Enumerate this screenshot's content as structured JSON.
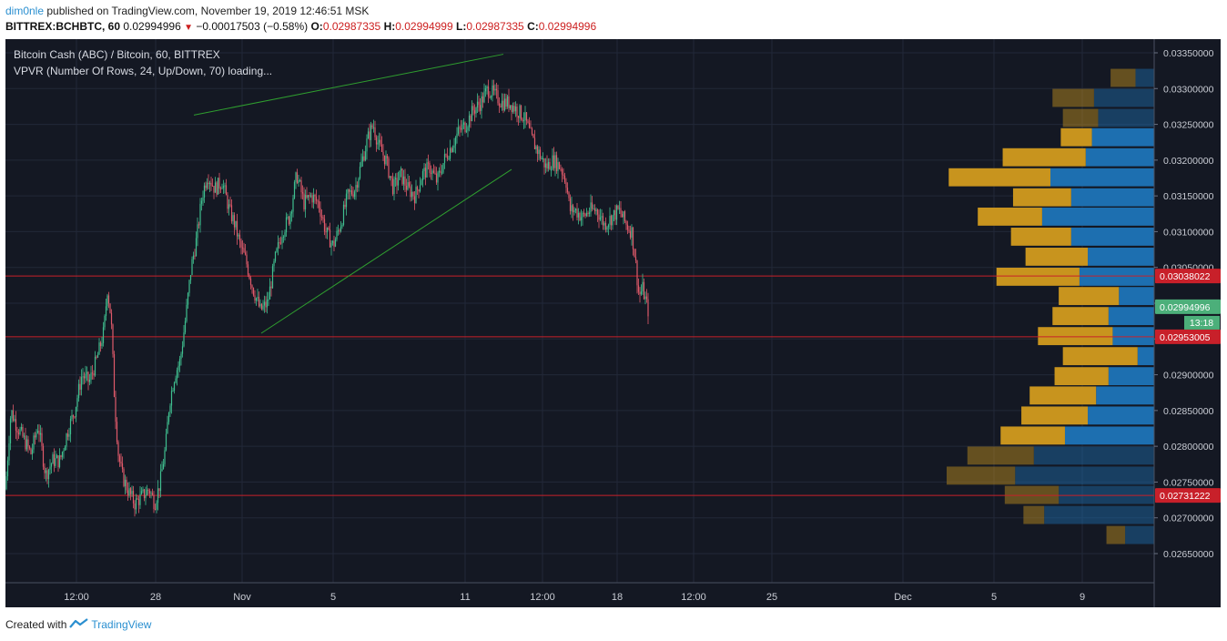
{
  "header": {
    "user": "dim0nle",
    "published": "published on TradingView.com, November 19, 2019 12:46:51 MSK",
    "symbol": "BITTREX:BCHBTC, 60",
    "last": "0.02994996",
    "change": "−0.00017503 (−0.58%)",
    "o_label": "O:",
    "o": "0.02987335",
    "h_label": "H:",
    "h": "0.02994999",
    "l_label": "L:",
    "l": "0.02987335",
    "c_label": "C:",
    "c": "0.02994996"
  },
  "legend": {
    "title": "Bitcoin Cash (ABC) / Bitcoin, 60, BITTREX",
    "indicator": "VPVR (Number Of Rows, 24, Up/Down, 70) loading..."
  },
  "footer": {
    "created": "Created with",
    "brand": "TradingView"
  },
  "colors": {
    "background": "#141823",
    "grid": "#222838",
    "up": "#3fbf8f",
    "down": "#e05a6a",
    "trendline": "#2f9e2f",
    "hline": "#c8202a",
    "vp_up": "#c8941e",
    "vp_down": "#1d6fb0",
    "price_tag_green": "#4caf7a",
    "price_tag_red": "#c8202a"
  },
  "chart_data": {
    "type": "candlestick",
    "symbol": "BCHBTC",
    "timeframe": "60",
    "x_ticks": [
      "12:00",
      "28",
      "Nov",
      "5",
      "11",
      "12:00",
      "18",
      "12:00",
      "25",
      "Dec",
      "5",
      "9"
    ],
    "y_ticks": [
      "0.03350000",
      "0.03300000",
      "0.03250000",
      "0.03200000",
      "0.03150000",
      "0.03100000",
      "0.03050000",
      "0.03000000",
      "0.02950000",
      "0.02900000",
      "0.02850000",
      "0.02800000",
      "0.02750000",
      "0.02700000",
      "0.02650000"
    ],
    "ylim": [
      0.02625,
      0.0338
    ],
    "close_path": [
      [
        0,
        0.0274
      ],
      [
        6,
        0.0285
      ],
      [
        12,
        0.0283
      ],
      [
        20,
        0.0281
      ],
      [
        28,
        0.0279
      ],
      [
        36,
        0.0283
      ],
      [
        44,
        0.0276
      ],
      [
        52,
        0.0278
      ],
      [
        60,
        0.0278
      ],
      [
        68,
        0.0282
      ],
      [
        76,
        0.0285
      ],
      [
        84,
        0.029
      ],
      [
        92,
        0.0289
      ],
      [
        100,
        0.0292
      ],
      [
        108,
        0.0296
      ],
      [
        112,
        0.0302
      ],
      [
        116,
        0.0298
      ],
      [
        120,
        0.0286
      ],
      [
        124,
        0.0279
      ],
      [
        128,
        0.0276
      ],
      [
        134,
        0.0274
      ],
      [
        142,
        0.0272
      ],
      [
        150,
        0.0273
      ],
      [
        158,
        0.0274
      ],
      [
        164,
        0.0272
      ],
      [
        170,
        0.0275
      ],
      [
        176,
        0.028
      ],
      [
        180,
        0.0286
      ],
      [
        186,
        0.029
      ],
      [
        192,
        0.0292
      ],
      [
        198,
        0.0298
      ],
      [
        204,
        0.0305
      ],
      [
        210,
        0.0309
      ],
      [
        216,
        0.0315
      ],
      [
        222,
        0.0318
      ],
      [
        230,
        0.0316
      ],
      [
        238,
        0.0317
      ],
      [
        246,
        0.0313
      ],
      [
        252,
        0.0311
      ],
      [
        258,
        0.0308
      ],
      [
        264,
        0.0306
      ],
      [
        272,
        0.0302
      ],
      [
        280,
        0.0299
      ],
      [
        288,
        0.03
      ],
      [
        296,
        0.0306
      ],
      [
        304,
        0.031
      ],
      [
        312,
        0.0312
      ],
      [
        320,
        0.0318
      ],
      [
        328,
        0.0314
      ],
      [
        336,
        0.0315
      ],
      [
        344,
        0.0314
      ],
      [
        352,
        0.031
      ],
      [
        360,
        0.0308
      ],
      [
        368,
        0.0311
      ],
      [
        376,
        0.0315
      ],
      [
        384,
        0.0316
      ],
      [
        392,
        0.032
      ],
      [
        398,
        0.0323
      ],
      [
        404,
        0.0325
      ],
      [
        410,
        0.0322
      ],
      [
        418,
        0.032
      ],
      [
        426,
        0.0316
      ],
      [
        434,
        0.0318
      ],
      [
        442,
        0.0316
      ],
      [
        450,
        0.0315
      ],
      [
        458,
        0.0318
      ],
      [
        466,
        0.0319
      ],
      [
        474,
        0.0317
      ],
      [
        482,
        0.032
      ],
      [
        490,
        0.0322
      ],
      [
        498,
        0.0324
      ],
      [
        506,
        0.0325
      ],
      [
        514,
        0.0327
      ],
      [
        522,
        0.0328
      ],
      [
        530,
        0.033
      ],
      [
        538,
        0.0329
      ],
      [
        546,
        0.0328
      ],
      [
        554,
        0.0328
      ],
      [
        562,
        0.0327
      ],
      [
        570,
        0.0326
      ],
      [
        578,
        0.0323
      ],
      [
        586,
        0.0321
      ],
      [
        594,
        0.0319
      ],
      [
        602,
        0.032
      ],
      [
        610,
        0.0319
      ],
      [
        616,
        0.0317
      ],
      [
        620,
        0.0313
      ],
      [
        626,
        0.0313
      ],
      [
        634,
        0.0312
      ],
      [
        642,
        0.0313
      ],
      [
        650,
        0.0313
      ],
      [
        658,
        0.0311
      ],
      [
        666,
        0.0312
      ],
      [
        674,
        0.0313
      ],
      [
        682,
        0.0311
      ],
      [
        688,
        0.031
      ],
      [
        692,
        0.0306
      ],
      [
        696,
        0.0301
      ],
      [
        700,
        0.0302
      ],
      [
        706,
        0.0299
      ]
    ],
    "trendlines": [
      {
        "x1": 207,
        "y1": 0.03263,
        "x2": 547,
        "y2": 0.03348
      },
      {
        "x1": 281,
        "y1": 0.02958,
        "x2": 556,
        "y2": 0.03187
      }
    ],
    "horizontal_levels": [
      0.03038022,
      0.02953005,
      0.02731222
    ],
    "price_labels": [
      {
        "value": 0.03038022,
        "text": "0.03038022",
        "kind": "level"
      },
      {
        "value": 0.02994996,
        "text": "0.02994996",
        "kind": "last"
      },
      {
        "value": 0.02953005,
        "text": "0.02953005",
        "kind": "level"
      },
      {
        "value": 0.02731222,
        "text": "0.02731222",
        "kind": "level"
      }
    ],
    "countdown": "13:18",
    "volume_profile": {
      "rows": 24,
      "mode": "Up/Down",
      "value_area_percent": 70,
      "bins": [
        {
          "price": 0.03315,
          "up": 0.12,
          "down": 0.09,
          "in_value_area": false
        },
        {
          "price": 0.03287,
          "up": 0.2,
          "down": 0.29,
          "in_value_area": false
        },
        {
          "price": 0.03259,
          "up": 0.17,
          "down": 0.27,
          "in_value_area": false
        },
        {
          "price": 0.03232,
          "up": 0.15,
          "down": 0.3,
          "in_value_area": true
        },
        {
          "price": 0.03204,
          "up": 0.4,
          "down": 0.33,
          "in_value_area": true
        },
        {
          "price": 0.03176,
          "up": 0.49,
          "down": 0.5,
          "in_value_area": true
        },
        {
          "price": 0.03148,
          "up": 0.28,
          "down": 0.4,
          "in_value_area": true
        },
        {
          "price": 0.03121,
          "up": 0.31,
          "down": 0.54,
          "in_value_area": true
        },
        {
          "price": 0.03093,
          "up": 0.29,
          "down": 0.4,
          "in_value_area": true
        },
        {
          "price": 0.03065,
          "up": 0.3,
          "down": 0.32,
          "in_value_area": true
        },
        {
          "price": 0.03037,
          "up": 0.4,
          "down": 0.36,
          "in_value_area": true
        },
        {
          "price": 0.0301,
          "up": 0.29,
          "down": 0.17,
          "in_value_area": true
        },
        {
          "price": 0.02982,
          "up": 0.27,
          "down": 0.22,
          "in_value_area": true
        },
        {
          "price": 0.02954,
          "up": 0.36,
          "down": 0.2,
          "in_value_area": true
        },
        {
          "price": 0.02926,
          "up": 0.36,
          "down": 0.08,
          "in_value_area": true
        },
        {
          "price": 0.02898,
          "up": 0.26,
          "down": 0.22,
          "in_value_area": true
        },
        {
          "price": 0.02871,
          "up": 0.32,
          "down": 0.28,
          "in_value_area": true
        },
        {
          "price": 0.02843,
          "up": 0.32,
          "down": 0.32,
          "in_value_area": true
        },
        {
          "price": 0.02815,
          "up": 0.31,
          "down": 0.43,
          "in_value_area": true
        },
        {
          "price": 0.02787,
          "up": 0.32,
          "down": 0.58,
          "in_value_area": false
        },
        {
          "price": 0.02759,
          "up": 0.33,
          "down": 0.67,
          "in_value_area": false
        },
        {
          "price": 0.02732,
          "up": 0.26,
          "down": 0.46,
          "in_value_area": false
        },
        {
          "price": 0.02704,
          "up": 0.1,
          "down": 0.53,
          "in_value_area": false
        },
        {
          "price": 0.02676,
          "up": 0.09,
          "down": 0.14,
          "in_value_area": false
        }
      ]
    }
  }
}
